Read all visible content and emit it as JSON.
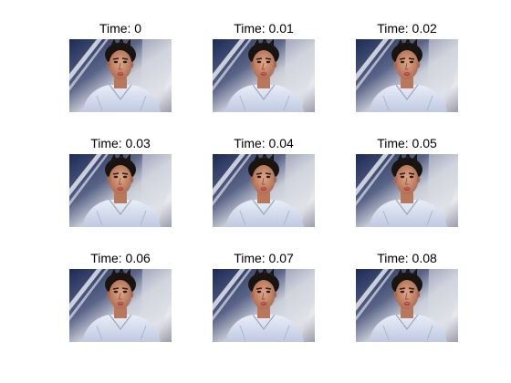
{
  "figure": {
    "panels": [
      {
        "title": "Time: 0"
      },
      {
        "title": "Time: 0.01"
      },
      {
        "title": "Time: 0.02"
      },
      {
        "title": "Time: 0.03"
      },
      {
        "title": "Time: 0.04"
      },
      {
        "title": "Time: 0.05"
      },
      {
        "title": "Time: 0.06"
      },
      {
        "title": "Time: 0.07"
      },
      {
        "title": "Time: 0.08"
      }
    ]
  },
  "colors": {
    "background": "#ffffff",
    "title_text": "#000000",
    "photo_dark_blue": "#1c2a55",
    "photo_silver": "#c9ccd6",
    "photo_shirt": "#dce4f4",
    "photo_skin": "#c98a6c",
    "photo_hair": "#1a1411"
  },
  "icons": {
    "panel_image": "portrait-photo-icon"
  }
}
